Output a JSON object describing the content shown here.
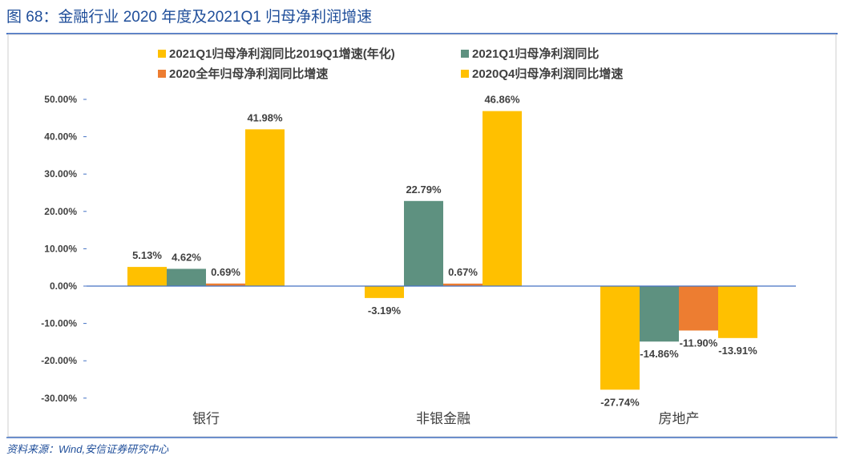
{
  "title": "图 68：金融行业 2020 年度及2021Q1 归母净利润增速",
  "source": "资料来源：Wind,安信证券研究中心",
  "chart_data": {
    "type": "bar",
    "categories": [
      "银行",
      "非银金融",
      "房地产"
    ],
    "series": [
      {
        "name": "2021Q1归母净利润同比2019Q1增速(年化)",
        "color": "#FFC000",
        "values": [
          5.13,
          -3.19,
          -27.74
        ],
        "labels": [
          "5.13%",
          "-3.19%",
          "-27.74%"
        ]
      },
      {
        "name": "2021Q1归母净利润同比",
        "color": "#5E9180",
        "values": [
          4.62,
          22.79,
          -14.86
        ],
        "labels": [
          "4.62%",
          "22.79%",
          "-14.86%"
        ]
      },
      {
        "name": "2020全年归母净利润同比增速",
        "color": "#ED7D31",
        "values": [
          0.69,
          0.67,
          -11.9
        ],
        "labels": [
          "0.69%",
          "0.67%",
          "-11.90%"
        ]
      },
      {
        "name": "2020Q4归母净利润同比增速",
        "color": "#FFC000",
        "values": [
          41.98,
          46.86,
          -13.91
        ],
        "labels": [
          "41.98%",
          "46.86%",
          "-13.91%"
        ]
      }
    ],
    "yticks": [
      "50.00%",
      "40.00%",
      "30.00%",
      "20.00%",
      "10.00%",
      "0.00%",
      "-10.00%",
      "-20.00%",
      "-30.00%"
    ],
    "ytick_values": [
      50,
      40,
      30,
      20,
      10,
      0,
      -10,
      -20,
      -30
    ],
    "ylim": [
      -30,
      50
    ],
    "legend_placement": "top",
    "grid": false
  }
}
